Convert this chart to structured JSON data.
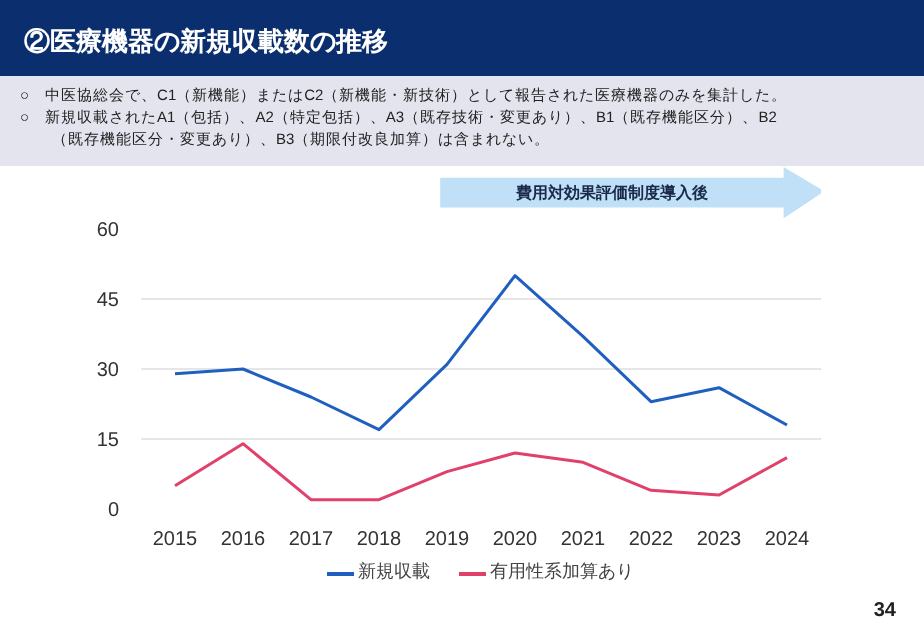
{
  "chart_data": {
    "type": "line",
    "title": "②医療機器の新規収載数の推移",
    "subtitle": "○　中医協総会で、C1（新機能）またはC2（新機能・新技術）として報告された医療機器のみを集計した。\n○　新規収載されたA1（包括）、A2（特定包括）、A3（既存技術・変更あり）、B1（既存機能区分）、B2\n　　（既存機能区分・変更あり）、B3（期限付改良加算）は含まれない。",
    "categories": [
      "2015",
      "2016",
      "2017",
      "2018",
      "2019",
      "2020",
      "2021",
      "2022",
      "2023",
      "2024"
    ],
    "series": [
      {
        "name": "新規収載",
        "color": "#1f5fbf",
        "values": [
          29,
          30,
          24,
          17,
          31,
          50,
          37,
          23,
          26,
          18
        ]
      },
      {
        "name": "有用性系加算あり",
        "color": "#e0406a",
        "values": [
          5,
          14,
          2,
          2,
          8,
          12,
          10,
          4,
          3,
          11
        ]
      }
    ],
    "ylim": [
      0,
      60
    ],
    "yticks": [
      0,
      15,
      30,
      45,
      60
    ],
    "grid": "y",
    "legend": "bottom",
    "marker": "none",
    "line_style": "solid",
    "annotations": [
      "費用対効果評価制度導入後",
      "34"
    ]
  }
}
